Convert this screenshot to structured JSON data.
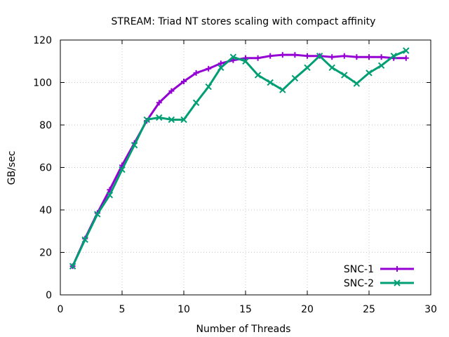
{
  "chart_data": {
    "type": "line",
    "title": "STREAM: Triad NT stores scaling with compact affinity",
    "xlabel": "Number of Threads",
    "ylabel": "GB/sec",
    "xlim": [
      0,
      30
    ],
    "ylim": [
      0,
      120
    ],
    "xticks": [
      0,
      5,
      10,
      15,
      20,
      25,
      30
    ],
    "yticks": [
      0,
      20,
      40,
      60,
      80,
      100,
      120
    ],
    "grid": true,
    "legend_position": "bottom-right",
    "x": [
      1,
      2,
      3,
      4,
      5,
      6,
      7,
      8,
      9,
      10,
      11,
      12,
      13,
      14,
      15,
      16,
      17,
      18,
      19,
      20,
      21,
      22,
      23,
      24,
      25,
      26,
      27,
      28
    ],
    "series": [
      {
        "name": "SNC-1",
        "color": "#9400d3",
        "marker": "plus",
        "values": [
          13.5,
          26.5,
          38.5,
          49.5,
          61,
          71.5,
          82,
          90.5,
          96,
          100.5,
          104.5,
          106.5,
          109,
          110.5,
          111.5,
          111.5,
          112.5,
          113,
          113,
          112.5,
          112.5,
          112,
          112.5,
          112,
          112,
          112,
          111.5,
          111.5
        ]
      },
      {
        "name": "SNC-2",
        "color": "#009e73",
        "marker": "cross",
        "values": [
          13.5,
          26,
          38,
          47,
          59,
          70.5,
          82.5,
          83.5,
          82.5,
          82.5,
          90.5,
          98,
          107,
          112,
          110,
          103.5,
          100,
          96.5,
          102,
          107,
          112.5,
          107,
          103.5,
          99.5,
          104.5,
          108,
          112.5,
          115
        ]
      }
    ]
  }
}
